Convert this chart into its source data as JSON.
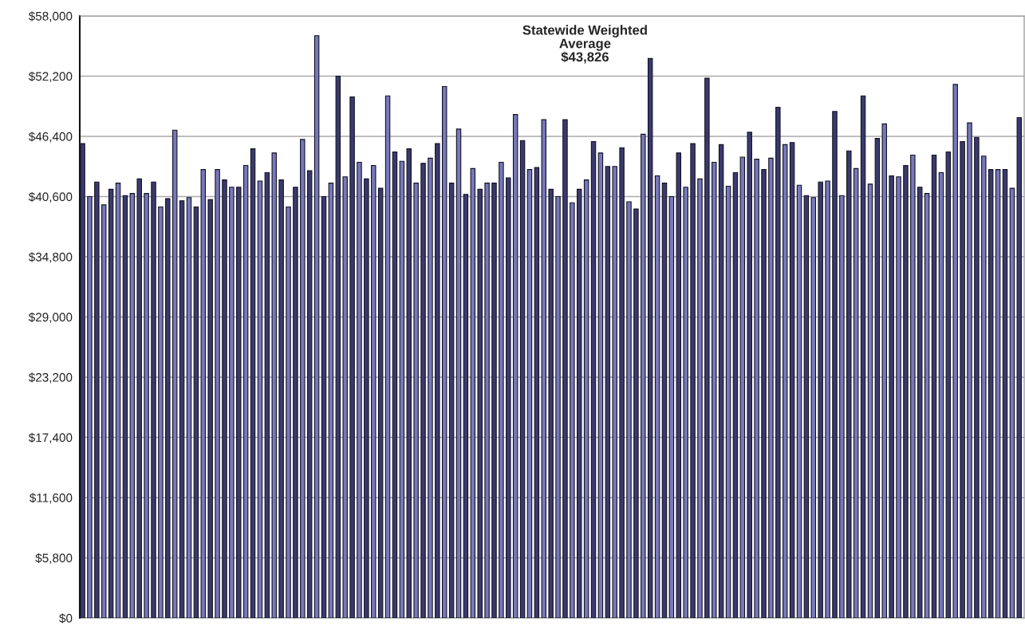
{
  "chart_data": {
    "type": "bar",
    "annotations": [
      "Statewide Weighted\nAverage\n$43,826"
    ],
    "categories": [
      null,
      null,
      null,
      null,
      null,
      null,
      null,
      null,
      null,
      null,
      null,
      null,
      null,
      null,
      null,
      null,
      null,
      null,
      null,
      null,
      null,
      null,
      null,
      null,
      null,
      null,
      null,
      null,
      null,
      null,
      null,
      null,
      null,
      null,
      null,
      null,
      null,
      null,
      null,
      null,
      null,
      null,
      null,
      null,
      null,
      null,
      null,
      null,
      null,
      null,
      null,
      null,
      null,
      null,
      null,
      null,
      null,
      null,
      null,
      null,
      null,
      null,
      null,
      null,
      null,
      null,
      null,
      null,
      null,
      null,
      null,
      null,
      null,
      null,
      null,
      null,
      null,
      null,
      null,
      null,
      null,
      null,
      null,
      null,
      null,
      null,
      null,
      null,
      null,
      null,
      null,
      null,
      null,
      null,
      null,
      null,
      null,
      null,
      null,
      null,
      null,
      null,
      null,
      null,
      null,
      null,
      null,
      null,
      null,
      null,
      null,
      null,
      null,
      null,
      null,
      null,
      null,
      null,
      null,
      null,
      null,
      null,
      null,
      null,
      null,
      null,
      null,
      null,
      null,
      null,
      null,
      null,
      null
    ],
    "values": [
      45700,
      40600,
      42000,
      39800,
      41300,
      41900,
      40700,
      40900,
      42300,
      40900,
      42000,
      39600,
      40400,
      47000,
      40200,
      40500,
      39600,
      43200,
      40300,
      43200,
      42200,
      41500,
      41500,
      43600,
      45200,
      42100,
      42900,
      44800,
      42200,
      39600,
      41500,
      46100,
      43100,
      56100,
      40600,
      41900,
      52200,
      42500,
      50200,
      43900,
      42300,
      43600,
      41400,
      50300,
      44900,
      44000,
      45200,
      41900,
      43800,
      44300,
      45700,
      51200,
      41900,
      47100,
      40800,
      43300,
      41300,
      41900,
      41900,
      43900,
      42400,
      48500,
      46000,
      43200,
      43400,
      48000,
      41300,
      40600,
      48000,
      40000,
      41300,
      42200,
      45900,
      44800,
      43500,
      43500,
      45300,
      40100,
      39400,
      46600,
      53900,
      42600,
      41900,
      40600,
      44800,
      41500,
      45700,
      42300,
      52000,
      43900,
      45600,
      41600,
      42900,
      44400,
      46800,
      44200,
      43200,
      44300,
      49200,
      45600,
      45800,
      41700,
      40700,
      40500,
      42000,
      42100,
      48800,
      40700,
      45000,
      43300,
      50300,
      41800,
      46200,
      47600,
      42600,
      42500,
      43600,
      44600,
      41500,
      40900,
      44600,
      42900,
      44900,
      51400,
      45900,
      47700,
      46300,
      44500,
      43200,
      43200,
      43200,
      41400,
      48200
    ],
    "colors": [
      "#3a3a6e",
      "#7878bc",
      "#3a3a6e",
      "#7878bc",
      "#3a3a6e",
      "#7878bc",
      "#3a3a6e",
      "#7878bc",
      "#3a3a6e",
      "#7878bc",
      "#3a3a6e",
      "#7878bc",
      "#3a3a6e",
      "#7878bc",
      "#3a3a6e",
      "#7878bc",
      "#3a3a6e",
      "#7878bc",
      "#3a3a6e",
      "#7878bc",
      "#3a3a6e",
      "#7878bc",
      "#3a3a6e",
      "#7878bc",
      "#3a3a6e",
      "#7878bc",
      "#3a3a6e",
      "#7878bc",
      "#3a3a6e",
      "#7878bc",
      "#3a3a6e",
      "#7878bc",
      "#3a3a6e",
      "#7878bc",
      "#3a3a6e",
      "#7878bc",
      "#3a3a6e",
      "#7878bc",
      "#3a3a6e",
      "#7878bc",
      "#3a3a6e",
      "#7878bc",
      "#3a3a6e",
      "#7878bc",
      "#3a3a6e",
      "#7878bc",
      "#3a3a6e",
      "#7878bc",
      "#3a3a6e",
      "#7878bc",
      "#3a3a6e",
      "#7878bc",
      "#3a3a6e",
      "#7878bc",
      "#3a3a6e",
      "#7878bc",
      "#3a3a6e",
      "#7878bc",
      "#3a3a6e",
      "#7878bc",
      "#3a3a6e",
      "#7878bc",
      "#3a3a6e",
      "#7878bc",
      "#3a3a6e",
      "#7878bc",
      "#3a3a6e",
      "#7878bc",
      "#3a3a6e",
      "#7878bc",
      "#3a3a6e",
      "#7878bc",
      "#3a3a6e",
      "#7878bc",
      "#3a3a6e",
      "#7878bc",
      "#3a3a6e",
      "#7878bc",
      "#3a3a6e",
      "#7878bc",
      "#3a3a6e",
      "#7878bc",
      "#3a3a6e",
      "#7878bc",
      "#3a3a6e",
      "#7878bc",
      "#3a3a6e",
      "#7878bc",
      "#3a3a6e",
      "#7878bc",
      "#3a3a6e",
      "#7878bc",
      "#3a3a6e",
      "#7878bc",
      "#3a3a6e",
      "#7878bc",
      "#3a3a6e",
      "#7878bc",
      "#3a3a6e",
      "#7878bc",
      "#3a3a6e",
      "#7878bc",
      "#3a3a6e",
      "#7878bc",
      "#3a3a6e",
      "#7878bc",
      "#3a3a6e",
      "#7878bc",
      "#3a3a6e",
      "#7878bc",
      "#3a3a6e",
      "#7878bc",
      "#3a3a6e",
      "#7878bc",
      "#3a3a6e",
      "#7878bc",
      "#3a3a6e",
      "#7878bc",
      "#3a3a6e",
      "#7878bc",
      "#3a3a6e",
      "#7878bc",
      "#3a3a6e",
      "#7878bc",
      "#3a3a6e",
      "#7878bc",
      "#3a3a6e",
      "#7878bc",
      "#3a3a6e",
      "#7878bc",
      "#3a3a6e",
      "#7878bc",
      "#3a3a6e"
    ],
    "ylim": [
      0,
      58000
    ],
    "yticks": [
      {
        "value": 0,
        "label": "$0"
      },
      {
        "value": 5800,
        "label": "$5,800"
      },
      {
        "value": 11600,
        "label": "$11,600"
      },
      {
        "value": 17400,
        "label": "$17,400"
      },
      {
        "value": 23200,
        "label": "$23,200"
      },
      {
        "value": 29000,
        "label": "$29,000"
      },
      {
        "value": 34800,
        "label": "$34,800"
      },
      {
        "value": 40600,
        "label": "$40,600"
      },
      {
        "value": 46400,
        "label": "$46,400"
      },
      {
        "value": 52200,
        "label": "$52,200"
      },
      {
        "value": 58000,
        "label": "$58,000"
      }
    ],
    "grid": "y",
    "tick_labels": "y",
    "legend": false
  }
}
